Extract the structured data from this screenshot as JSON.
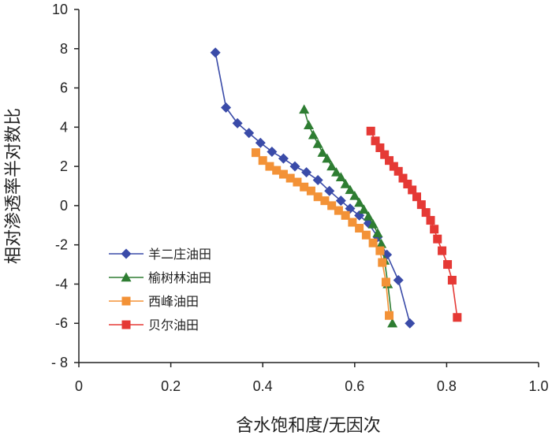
{
  "chart_data": {
    "type": "line",
    "xlabel": "含水饱和度/无因次",
    "ylabel": "相对渗透率半对数比",
    "xlim": [
      0,
      1.0
    ],
    "ylim": [
      -8,
      10
    ],
    "xticks": [
      0,
      0.2,
      0.4,
      0.6,
      0.8,
      1.0
    ],
    "xtick_labels": [
      "0",
      "0.2",
      "0.4",
      "0.6",
      "0.8",
      "1.0"
    ],
    "yticks": [
      -8,
      -6,
      -4,
      -2,
      0,
      2,
      4,
      6,
      8,
      10
    ],
    "ytick_labels": [
      "- 8",
      "-6",
      "-4",
      "-2",
      "0",
      "2",
      "4",
      "6",
      "8",
      "10"
    ],
    "grid": false,
    "legend_position": "bottom-left",
    "series": [
      {
        "name": "羊二庄油田",
        "marker": "diamond",
        "color": "#3A4BA8",
        "x": [
          0.297,
          0.32,
          0.345,
          0.37,
          0.395,
          0.42,
          0.445,
          0.47,
          0.495,
          0.52,
          0.545,
          0.57,
          0.59,
          0.61,
          0.63,
          0.65,
          0.67,
          0.695,
          0.72
        ],
        "y": [
          7.8,
          5.0,
          4.2,
          3.7,
          3.2,
          2.75,
          2.4,
          2.0,
          1.7,
          1.3,
          0.75,
          0.25,
          -0.15,
          -0.5,
          -0.9,
          -1.6,
          -2.5,
          -3.8,
          -6.0
        ]
      },
      {
        "name": "榆树林油田",
        "marker": "triangle",
        "color": "#2E7D32",
        "x": [
          0.49,
          0.5,
          0.51,
          0.52,
          0.53,
          0.54,
          0.55,
          0.56,
          0.57,
          0.58,
          0.59,
          0.6,
          0.61,
          0.62,
          0.63,
          0.64,
          0.65,
          0.658,
          0.665,
          0.672,
          0.682
        ],
        "y": [
          4.9,
          4.1,
          3.6,
          3.15,
          2.7,
          2.4,
          2.0,
          1.7,
          1.45,
          1.1,
          0.8,
          0.5,
          0.15,
          -0.2,
          -0.55,
          -0.95,
          -1.4,
          -1.95,
          -2.8,
          -4.0,
          -6.0
        ]
      },
      {
        "name": "西峰油田",
        "marker": "square",
        "color": "#F39237",
        "x": [
          0.385,
          0.4,
          0.415,
          0.43,
          0.445,
          0.46,
          0.475,
          0.49,
          0.505,
          0.52,
          0.535,
          0.55,
          0.565,
          0.58,
          0.595,
          0.61,
          0.625,
          0.64,
          0.655,
          0.66,
          0.668,
          0.675
        ],
        "y": [
          2.7,
          2.3,
          2.0,
          1.8,
          1.6,
          1.4,
          1.2,
          0.95,
          0.75,
          0.45,
          0.25,
          0.0,
          -0.25,
          -0.5,
          -0.85,
          -1.15,
          -1.5,
          -1.9,
          -2.3,
          -2.9,
          -3.9,
          -5.6
        ]
      },
      {
        "name": "贝尔油田",
        "marker": "square",
        "color": "#E53935",
        "x": [
          0.635,
          0.645,
          0.655,
          0.665,
          0.675,
          0.685,
          0.695,
          0.705,
          0.715,
          0.725,
          0.735,
          0.745,
          0.755,
          0.765,
          0.773,
          0.78,
          0.79,
          0.802,
          0.812,
          0.823
        ],
        "y": [
          3.8,
          3.3,
          2.95,
          2.6,
          2.3,
          2.0,
          1.75,
          1.4,
          1.1,
          0.8,
          0.45,
          0.05,
          -0.35,
          -0.75,
          -1.2,
          -1.7,
          -2.3,
          -3.0,
          -3.8,
          -5.7
        ]
      }
    ]
  }
}
